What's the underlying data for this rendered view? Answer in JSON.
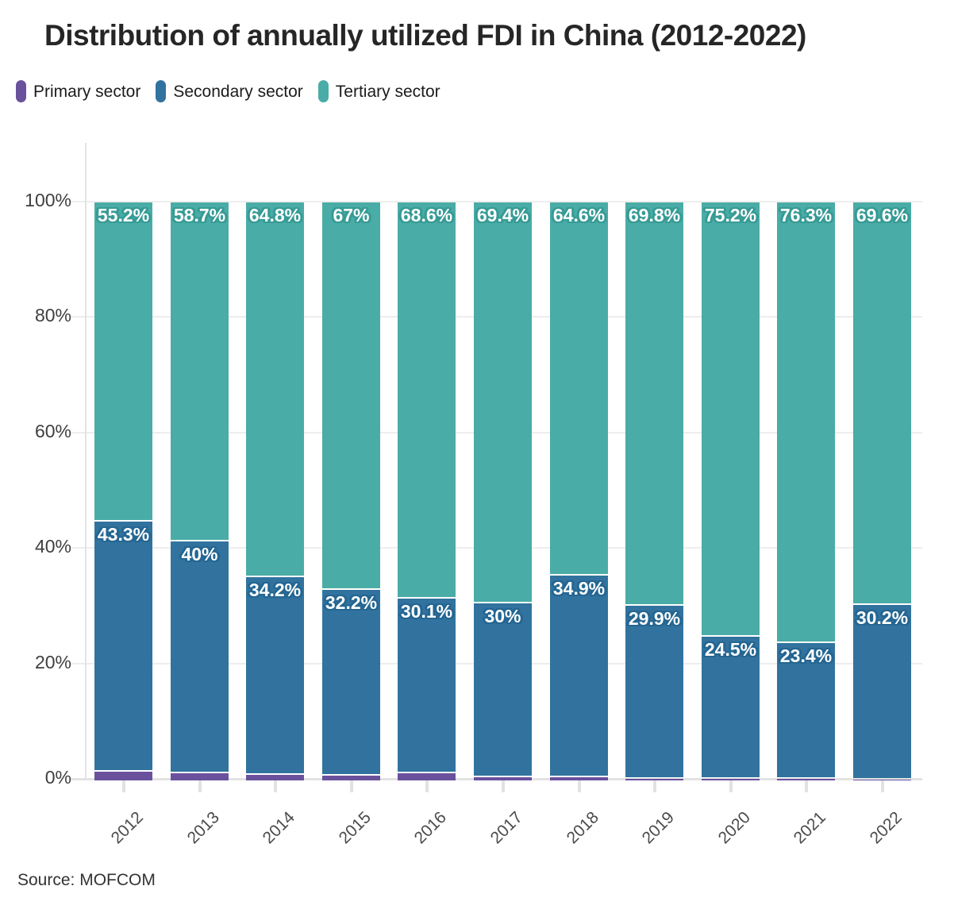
{
  "title": "Distribution of annually utilized FDI in China (2012-2022)",
  "legend": {
    "items": [
      {
        "label": "Primary sector",
        "color": "#6A519C"
      },
      {
        "label": "Secondary sector",
        "color": "#31739E"
      },
      {
        "label": "Tertiary sector",
        "color": "#4AACA6"
      }
    ]
  },
  "chart_data": {
    "type": "bar",
    "stacked": true,
    "title": "Distribution of annually utilized FDI in China (2012-2022)",
    "categories": [
      "2012",
      "2013",
      "2014",
      "2015",
      "2016",
      "2017",
      "2018",
      "2019",
      "2020",
      "2021",
      "2022"
    ],
    "series": [
      {
        "name": "Primary sector",
        "color": "#6A519C",
        "values": [
          1.5,
          1.3,
          1.0,
          0.8,
          1.3,
          0.6,
          0.5,
          0.3,
          0.3,
          0.3,
          0.2
        ],
        "labels": [
          "",
          "",
          "",
          "",
          "",
          "",
          "",
          "",
          "",
          "",
          ""
        ]
      },
      {
        "name": "Secondary sector",
        "color": "#31739E",
        "label_halo": "#256692",
        "values": [
          43.3,
          40,
          34.2,
          32.2,
          30.1,
          30,
          34.9,
          29.9,
          24.5,
          23.4,
          30.2
        ],
        "labels": [
          "43.3%",
          "40%",
          "34.2%",
          "32.2%",
          "30.1%",
          "30%",
          "34.9%",
          "29.9%",
          "24.5%",
          "23.4%",
          "30.2%"
        ]
      },
      {
        "name": "Tertiary sector",
        "color": "#4AACA6",
        "label_halo": "#379B95",
        "values": [
          55.2,
          58.7,
          64.8,
          67,
          68.6,
          69.4,
          64.6,
          69.8,
          75.2,
          76.3,
          69.6
        ],
        "labels": [
          "55.2%",
          "58.7%",
          "64.8%",
          "67%",
          "68.6%",
          "69.4%",
          "64.6%",
          "69.8%",
          "75.2%",
          "76.3%",
          "69.6%"
        ]
      }
    ],
    "xlabel": "",
    "ylabel": "",
    "ylim": [
      0,
      100
    ],
    "y_ticks": [
      "0%",
      "20%",
      "40%",
      "60%",
      "80%",
      "100%"
    ],
    "grid": true,
    "legend_position": "top"
  },
  "source": {
    "text": "Source: MOFCOM"
  }
}
